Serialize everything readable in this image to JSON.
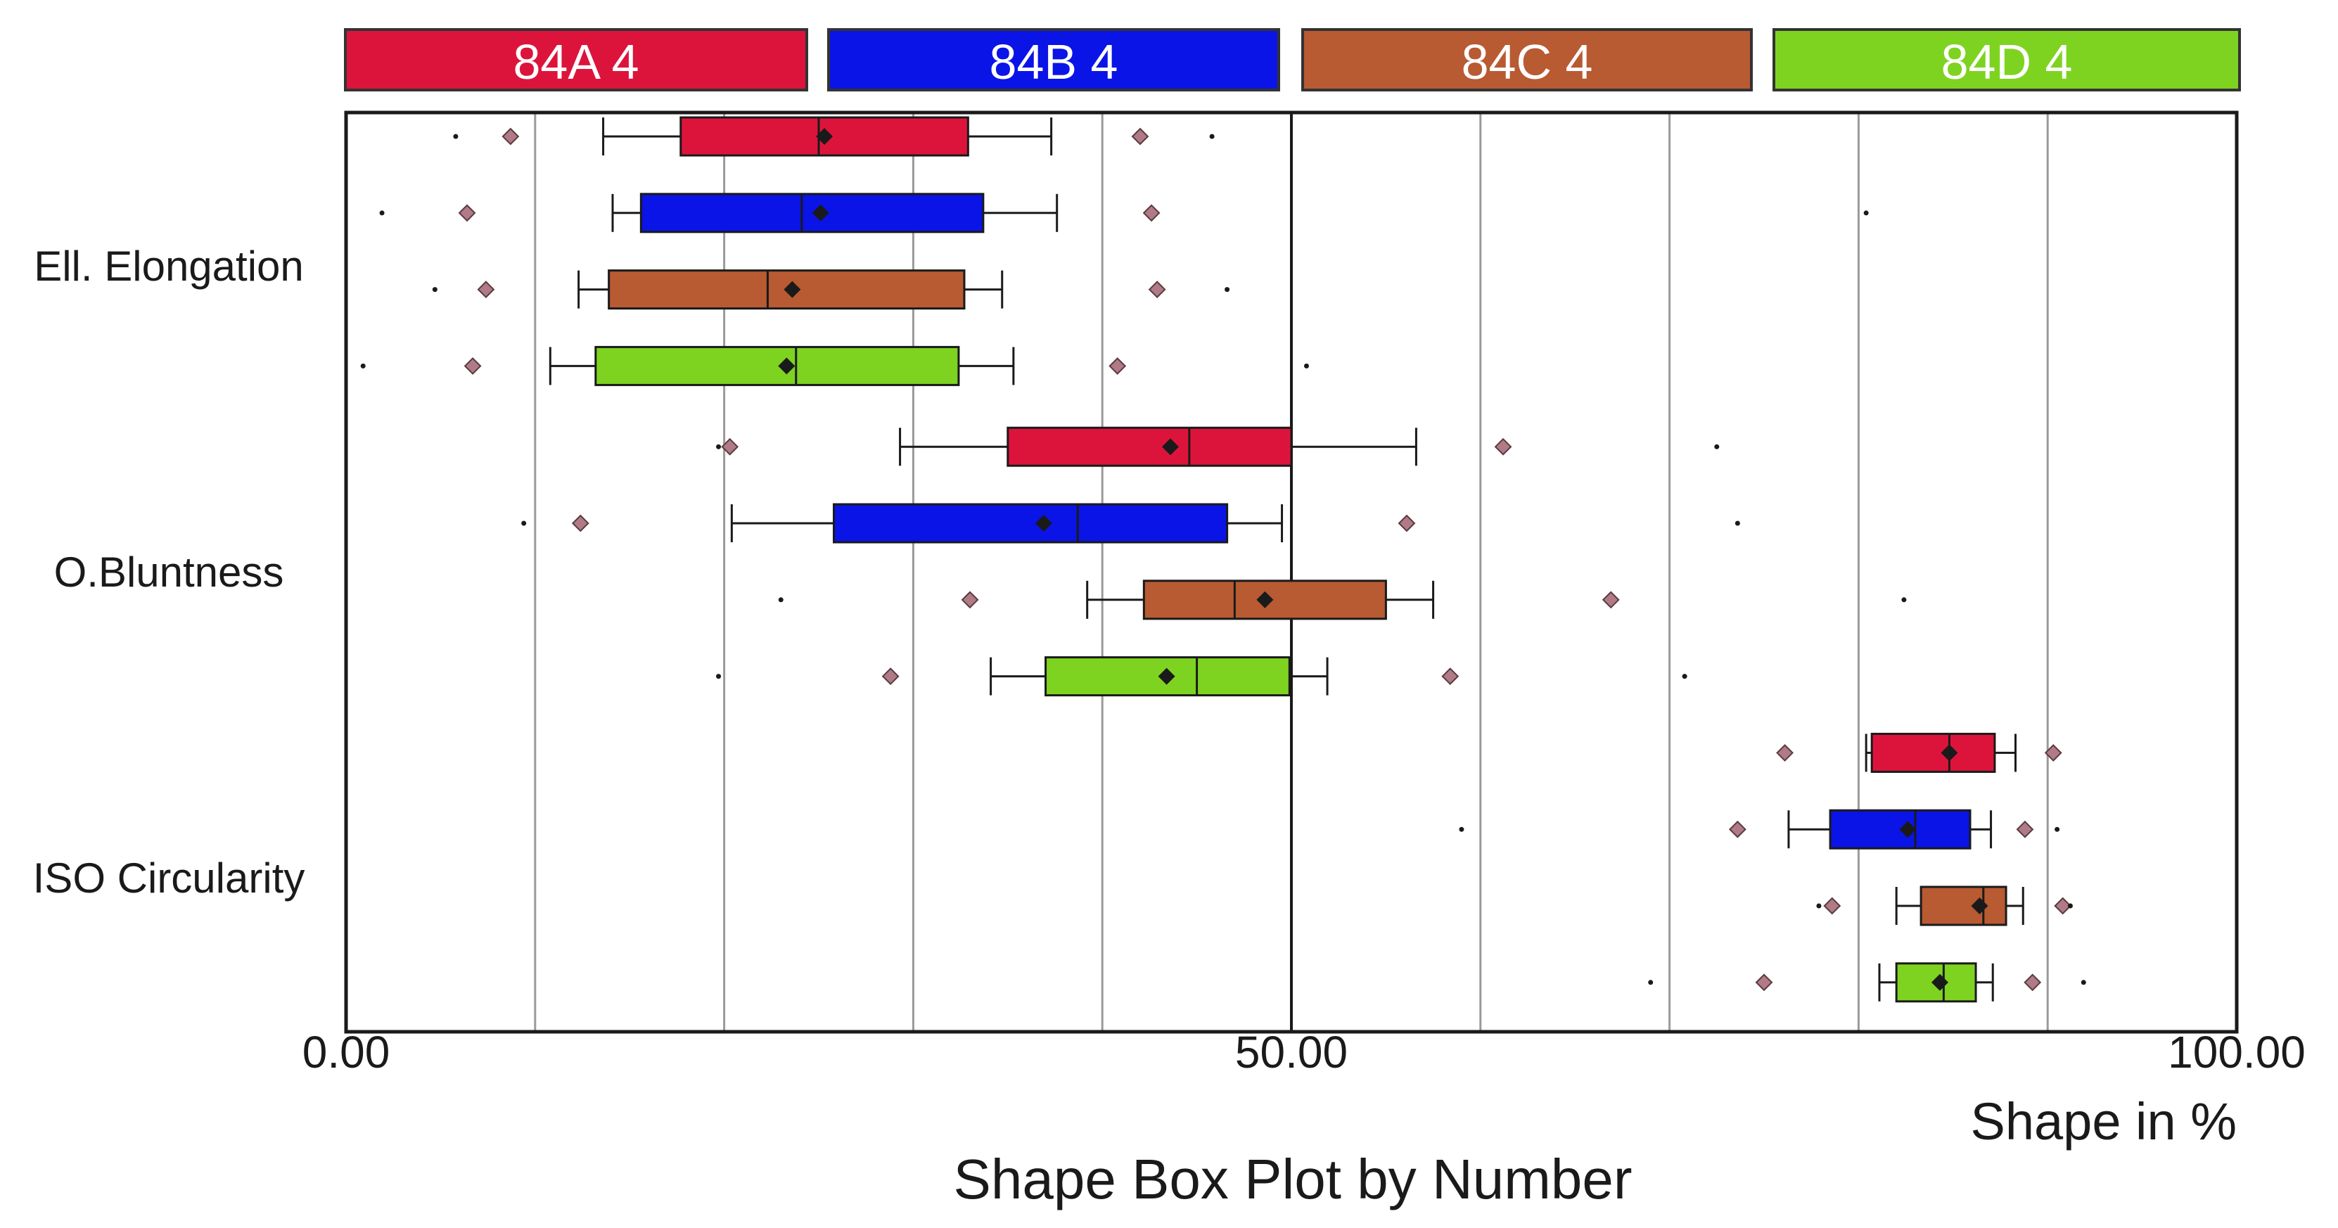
{
  "chart_data": {
    "type": "box",
    "title": "Shape Box Plot by Number",
    "xlabel": "Shape in %",
    "xlim": [
      0,
      100
    ],
    "xticks": [
      {
        "value": 0,
        "label": "0.00"
      },
      {
        "value": 50,
        "label": "50.00"
      },
      {
        "value": 100,
        "label": "100.00"
      }
    ],
    "gridlines": [
      10,
      20,
      30,
      40,
      50,
      60,
      70,
      80,
      90
    ],
    "categories": [
      "Ell. Elongation",
      "O.Bluntness",
      "ISO Circularity"
    ],
    "series": [
      {
        "name": "84A 4",
        "color": "#dc143c"
      },
      {
        "name": "84B 4",
        "color": "#0a14e6"
      },
      {
        "name": "84C 4",
        "color": "#b85a32"
      },
      {
        "name": "84D 4",
        "color": "#7ed321"
      }
    ],
    "boxes": [
      {
        "category": "Ell. Elongation",
        "series": "84A 4",
        "whisker_low": 13.6,
        "q1": 17.7,
        "median": 25.0,
        "q3": 32.9,
        "whisker_high": 37.3,
        "mean": 25.3,
        "outliers": [
          8.7,
          42.0
        ],
        "extremes": [
          5.8,
          45.8
        ]
      },
      {
        "category": "Ell. Elongation",
        "series": "84B 4",
        "whisker_low": 14.1,
        "q1": 15.6,
        "median": 24.1,
        "q3": 33.7,
        "whisker_high": 37.6,
        "mean": 25.1,
        "outliers": [
          6.4,
          42.6
        ],
        "extremes": [
          1.9,
          80.4
        ]
      },
      {
        "category": "Ell. Elongation",
        "series": "84C 4",
        "whisker_low": 12.3,
        "q1": 13.9,
        "median": 22.3,
        "q3": 32.7,
        "whisker_high": 34.7,
        "mean": 23.6,
        "outliers": [
          7.4,
          42.9
        ],
        "extremes": [
          4.7,
          46.6
        ]
      },
      {
        "category": "Ell. Elongation",
        "series": "84D 4",
        "whisker_low": 10.8,
        "q1": 13.2,
        "median": 23.8,
        "q3": 32.4,
        "whisker_high": 35.3,
        "mean": 23.3,
        "outliers": [
          6.7,
          40.8
        ],
        "extremes": [
          0.9,
          50.8
        ]
      },
      {
        "category": "O.Bluntness",
        "series": "84A 4",
        "whisker_low": 29.3,
        "q1": 35.0,
        "median": 44.6,
        "q3": 50.0,
        "whisker_high": 56.6,
        "mean": 43.6,
        "outliers": [
          20.3,
          61.2
        ],
        "extremes": [
          19.7,
          72.5
        ]
      },
      {
        "category": "O.Bluntness",
        "series": "84B 4",
        "whisker_low": 20.4,
        "q1": 25.8,
        "median": 38.7,
        "q3": 46.6,
        "whisker_high": 49.5,
        "mean": 36.9,
        "outliers": [
          12.4,
          56.1
        ],
        "extremes": [
          9.4,
          73.6
        ]
      },
      {
        "category": "O.Bluntness",
        "series": "84C 4",
        "whisker_low": 39.2,
        "q1": 42.2,
        "median": 47.0,
        "q3": 55.0,
        "whisker_high": 57.5,
        "mean": 48.6,
        "outliers": [
          33.0,
          66.9
        ],
        "extremes": [
          23.0,
          82.4
        ]
      },
      {
        "category": "O.Bluntness",
        "series": "84D 4",
        "whisker_low": 34.1,
        "q1": 37.0,
        "median": 45.0,
        "q3": 49.9,
        "whisker_high": 51.9,
        "mean": 43.4,
        "outliers": [
          28.8,
          58.4
        ],
        "extremes": [
          19.7,
          70.8
        ]
      },
      {
        "category": "ISO Circularity",
        "series": "84A 4",
        "whisker_low": 80.4,
        "q1": 80.7,
        "median": 84.8,
        "q3": 87.2,
        "whisker_high": 88.3,
        "mean": 84.8,
        "outliers": [
          76.1,
          90.3
        ],
        "extremes": []
      },
      {
        "category": "ISO Circularity",
        "series": "84B 4",
        "whisker_low": 76.3,
        "q1": 78.5,
        "median": 83.0,
        "q3": 85.9,
        "whisker_high": 87.0,
        "mean": 82.6,
        "outliers": [
          73.6,
          88.8
        ],
        "extremes": [
          59.0,
          90.5
        ]
      },
      {
        "category": "ISO Circularity",
        "series": "84C 4",
        "whisker_low": 82.0,
        "q1": 83.3,
        "median": 86.6,
        "q3": 87.8,
        "whisker_high": 88.7,
        "mean": 86.4,
        "outliers": [
          78.6,
          90.8
        ],
        "extremes": [
          77.9,
          91.2
        ]
      },
      {
        "category": "ISO Circularity",
        "series": "84D 4",
        "whisker_low": 81.1,
        "q1": 82.0,
        "median": 84.5,
        "q3": 86.2,
        "whisker_high": 87.1,
        "mean": 84.3,
        "outliers": [
          75.0,
          89.2
        ],
        "extremes": [
          69.0,
          91.9
        ]
      }
    ]
  }
}
